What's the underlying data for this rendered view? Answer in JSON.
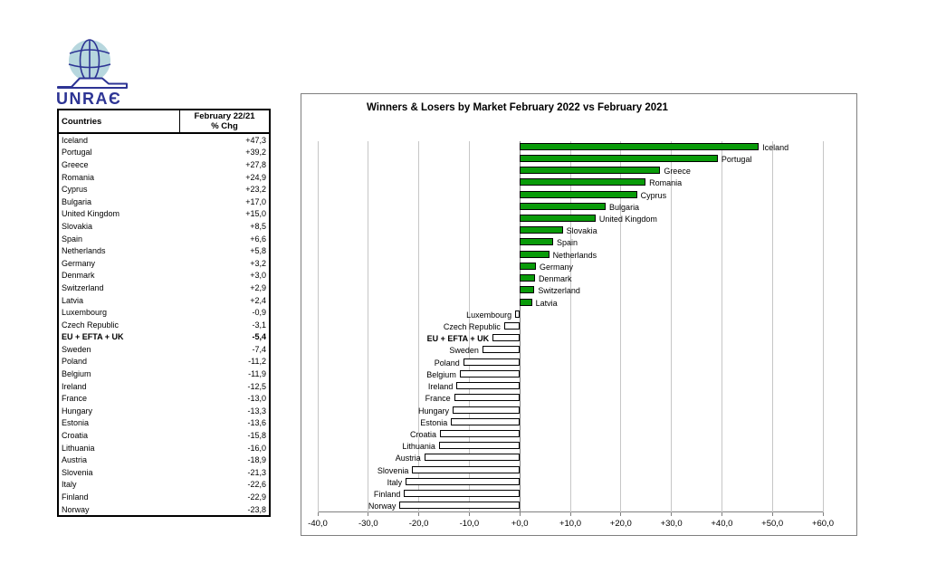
{
  "logo": {
    "text": "UNRAЄ",
    "brand_color": "#2d3494",
    "globe_color": "#b7d7de"
  },
  "table": {
    "header": {
      "col1": "Countries",
      "col2_line1": "February 22/21",
      "col2_line2": "% Chg"
    }
  },
  "chart_data": {
    "type": "bar",
    "orientation": "horizontal",
    "title": "Winners & Losers by Market February 2022 vs February 2021",
    "categories": [
      "Iceland",
      "Portugal",
      "Greece",
      "Romania",
      "Cyprus",
      "Bulgaria",
      "United Kingdom",
      "Slovakia",
      "Spain",
      "Netherlands",
      "Germany",
      "Denmark",
      "Switzerland",
      "Latvia",
      "Luxembourg",
      "Czech Republic",
      "EU + EFTA + UK",
      "Sweden",
      "Poland",
      "Belgium",
      "Ireland",
      "France",
      "Hungary",
      "Estonia",
      "Croatia",
      "Lithuania",
      "Austria",
      "Slovenia",
      "Italy",
      "Finland",
      "Norway"
    ],
    "values": [
      47.3,
      39.2,
      27.8,
      24.9,
      23.2,
      17.0,
      15.0,
      8.5,
      6.6,
      5.8,
      3.2,
      3.0,
      2.9,
      2.4,
      -0.9,
      -3.1,
      -5.4,
      -7.4,
      -11.2,
      -11.9,
      -12.5,
      -13.0,
      -13.3,
      -13.6,
      -15.8,
      -16.0,
      -18.9,
      -21.3,
      -22.6,
      -22.9,
      -23.8
    ],
    "bold_category": "EU + EFTA + UK",
    "xlim": [
      -40,
      60
    ],
    "x_ticks": [
      -40,
      -30,
      -20,
      -10,
      0,
      10,
      20,
      30,
      40,
      50,
      60
    ],
    "decimal_separator": ",",
    "positive_color": "#099b09",
    "negative_color": "#ffffff",
    "bar_border_color": "#000000",
    "gridline_color": "#c6c6c6",
    "axis_color": "#808080",
    "legend": "none",
    "grid": "vertical-on"
  }
}
